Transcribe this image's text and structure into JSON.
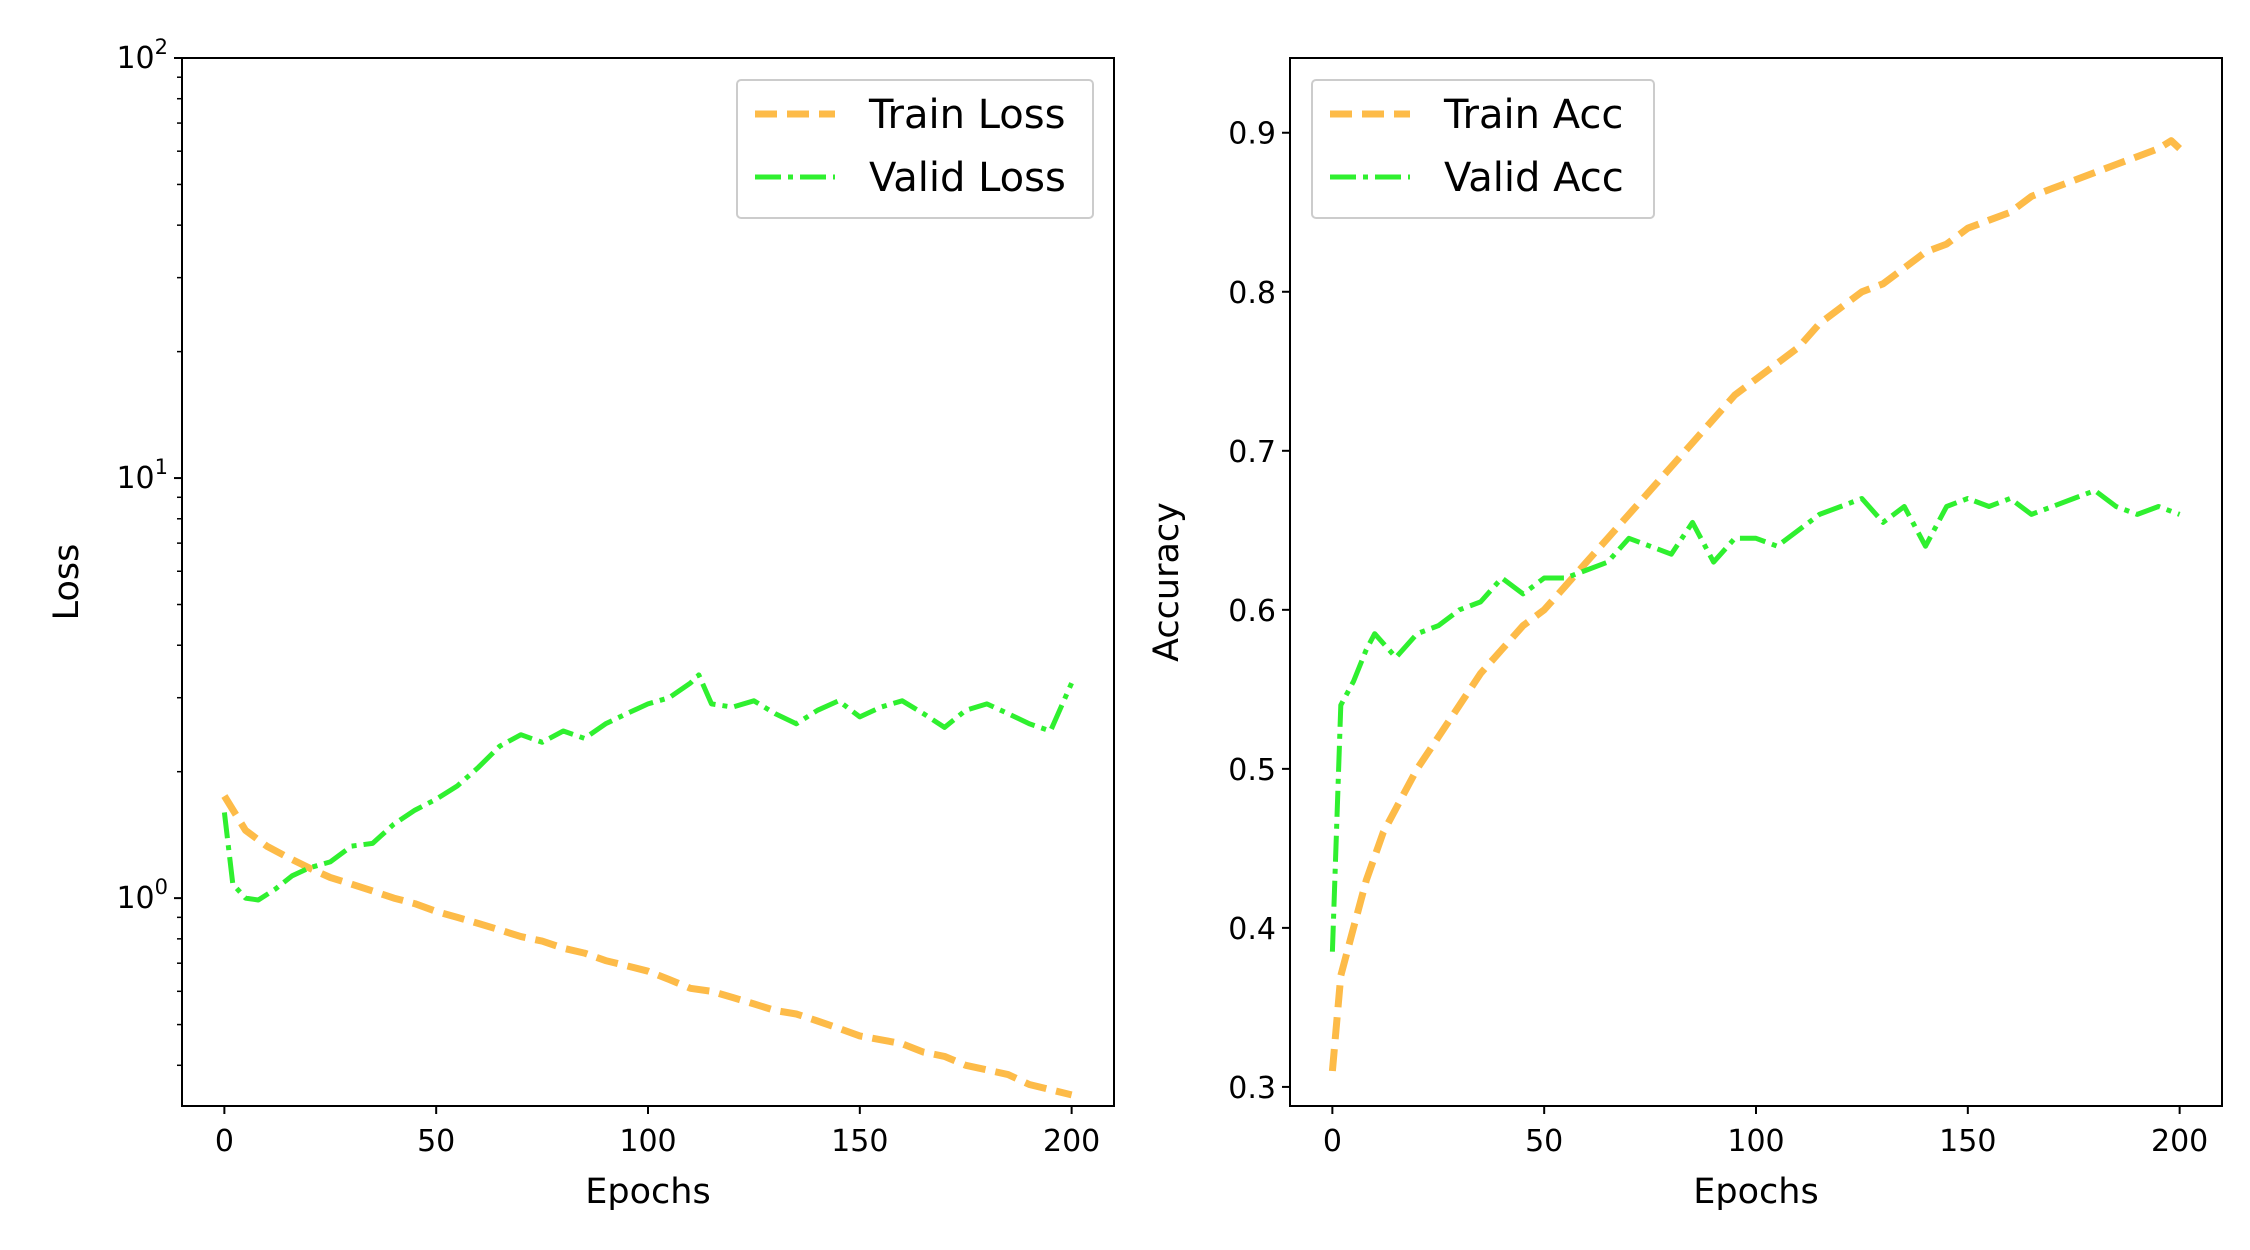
{
  "chart_data": [
    {
      "type": "line",
      "title": "",
      "xlabel": "Epochs",
      "ylabel": "Loss",
      "yscale": "log",
      "xlim": [
        -10,
        210
      ],
      "ylim": [
        0.32,
        100
      ],
      "xticks": [
        "0",
        "50",
        "100",
        "150",
        "200"
      ],
      "yticks": [
        {
          "value": 1,
          "base": "10",
          "exp": "0"
        },
        {
          "value": 10,
          "base": "10",
          "exp": "1"
        },
        {
          "value": 100,
          "base": "10",
          "exp": "2"
        }
      ],
      "legend": "top-right",
      "series": [
        {
          "name": "Train Loss",
          "color": "#fdbb48",
          "style": "dashed",
          "x": [
            0,
            5,
            10,
            15,
            20,
            25,
            30,
            35,
            40,
            45,
            50,
            55,
            60,
            65,
            70,
            75,
            80,
            85,
            90,
            95,
            100,
            105,
            110,
            115,
            120,
            125,
            130,
            135,
            140,
            145,
            150,
            155,
            160,
            165,
            170,
            175,
            180,
            185,
            190,
            195,
            200
          ],
          "values": [
            1.75,
            1.45,
            1.33,
            1.25,
            1.18,
            1.12,
            1.08,
            1.04,
            1.0,
            0.97,
            0.93,
            0.9,
            0.87,
            0.84,
            0.81,
            0.79,
            0.76,
            0.74,
            0.71,
            0.69,
            0.67,
            0.64,
            0.61,
            0.6,
            0.58,
            0.56,
            0.54,
            0.53,
            0.51,
            0.49,
            0.47,
            0.46,
            0.45,
            0.43,
            0.42,
            0.4,
            0.39,
            0.38,
            0.36,
            0.35,
            0.34
          ]
        },
        {
          "name": "Valid Loss",
          "color": "#2ff02f",
          "style": "dashdot",
          "x": [
            0,
            2,
            5,
            8,
            12,
            16,
            20,
            25,
            30,
            35,
            40,
            45,
            50,
            55,
            60,
            65,
            70,
            75,
            80,
            85,
            90,
            95,
            100,
            105,
            110,
            112,
            115,
            120,
            125,
            130,
            135,
            140,
            145,
            150,
            155,
            160,
            165,
            170,
            175,
            180,
            185,
            190,
            195,
            200
          ],
          "values": [
            1.6,
            1.08,
            1.0,
            0.99,
            1.05,
            1.13,
            1.18,
            1.22,
            1.33,
            1.35,
            1.5,
            1.62,
            1.72,
            1.85,
            2.05,
            2.3,
            2.45,
            2.35,
            2.5,
            2.4,
            2.6,
            2.75,
            2.9,
            3.0,
            3.25,
            3.4,
            2.9,
            2.85,
            2.95,
            2.75,
            2.6,
            2.8,
            2.95,
            2.7,
            2.85,
            2.95,
            2.75,
            2.55,
            2.8,
            2.9,
            2.75,
            2.6,
            2.5,
            3.25
          ]
        }
      ]
    },
    {
      "type": "line",
      "title": "",
      "xlabel": "Epochs",
      "ylabel": "Accuracy",
      "xlim": [
        -10,
        210
      ],
      "ylim": [
        0.288,
        0.947
      ],
      "xticks": [
        "0",
        "50",
        "100",
        "150",
        "200"
      ],
      "yticks": [
        "0.3",
        "0.4",
        "0.5",
        "0.6",
        "0.7",
        "0.8",
        "0.9"
      ],
      "legend": "top-left",
      "series": [
        {
          "name": "Train Acc",
          "color": "#fdbb48",
          "style": "dashed",
          "x": [
            0,
            2,
            5,
            8,
            12,
            16,
            20,
            25,
            30,
            35,
            40,
            45,
            50,
            55,
            60,
            65,
            70,
            75,
            80,
            85,
            90,
            95,
            100,
            105,
            110,
            115,
            120,
            125,
            130,
            135,
            140,
            145,
            150,
            155,
            160,
            165,
            170,
            175,
            180,
            185,
            190,
            195,
            198,
            200
          ],
          "values": [
            0.31,
            0.37,
            0.4,
            0.43,
            0.46,
            0.48,
            0.5,
            0.52,
            0.54,
            0.56,
            0.575,
            0.59,
            0.6,
            0.615,
            0.63,
            0.645,
            0.66,
            0.675,
            0.69,
            0.705,
            0.72,
            0.735,
            0.745,
            0.755,
            0.765,
            0.78,
            0.79,
            0.8,
            0.805,
            0.815,
            0.825,
            0.83,
            0.84,
            0.845,
            0.85,
            0.86,
            0.865,
            0.87,
            0.875,
            0.88,
            0.885,
            0.89,
            0.895,
            0.89
          ]
        },
        {
          "name": "Valid Acc",
          "color": "#2ff02f",
          "style": "dashdot",
          "x": [
            0,
            2,
            5,
            8,
            10,
            15,
            20,
            25,
            30,
            35,
            40,
            45,
            50,
            55,
            60,
            65,
            70,
            75,
            80,
            85,
            90,
            95,
            100,
            105,
            110,
            115,
            120,
            125,
            130,
            135,
            140,
            145,
            150,
            155,
            160,
            165,
            170,
            175,
            180,
            185,
            190,
            195,
            200
          ],
          "values": [
            0.385,
            0.54,
            0.555,
            0.575,
            0.585,
            0.57,
            0.585,
            0.59,
            0.6,
            0.605,
            0.62,
            0.61,
            0.62,
            0.62,
            0.625,
            0.63,
            0.645,
            0.64,
            0.635,
            0.655,
            0.63,
            0.645,
            0.645,
            0.64,
            0.65,
            0.66,
            0.665,
            0.67,
            0.655,
            0.665,
            0.64,
            0.665,
            0.67,
            0.665,
            0.67,
            0.66,
            0.665,
            0.67,
            0.675,
            0.665,
            0.66,
            0.665,
            0.66
          ]
        }
      ]
    }
  ]
}
